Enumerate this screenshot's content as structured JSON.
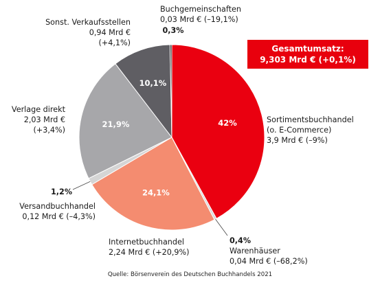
{
  "chart_data": {
    "type": "pie",
    "title": "",
    "total_box": {
      "label": "Gesamtumsatz:",
      "value": "9,303 Mrd € (+0,1%)"
    },
    "slices": [
      {
        "pct_label": "42%",
        "value": 42.0,
        "name_lines": [
          "Sortimentsbuchhandel",
          "(o. E-Commerce)"
        ],
        "detail": "3,9 Mrd € (–9%)",
        "color": "#ea0010"
      },
      {
        "pct_label": "0,4%",
        "value": 0.4,
        "name_lines": [
          "Warenhäuser"
        ],
        "detail": "0,04 Mrd € (–68,2%)",
        "color": "#d9d9d9"
      },
      {
        "pct_label": "24,1%",
        "value": 24.1,
        "name_lines": [
          "Internetbuchhandel"
        ],
        "detail": "2,24 Mrd € (+20,9%)",
        "color": "#f48c70"
      },
      {
        "pct_label": "1,2%",
        "value": 1.2,
        "name_lines": [
          "Versandbuchhandel"
        ],
        "detail": "0,12 Mrd € (–4,3%)",
        "color": "#d5d5d5"
      },
      {
        "pct_label": "21,9%",
        "value": 21.9,
        "name_lines": [
          "Verlage direkt"
        ],
        "detail_lines": [
          "2,03 Mrd €",
          "(+3,4%)"
        ],
        "color": "#a7a7aa"
      },
      {
        "pct_label": "10,1%",
        "value": 10.1,
        "name_lines": [
          "Sonst. Verkaufsstellen"
        ],
        "detail_lines": [
          "0,94 Mrd €",
          "(+4,1%)"
        ],
        "color": "#5f5e63"
      },
      {
        "pct_label": "0,3%",
        "value": 0.3,
        "name_lines": [
          "Buchgemeinschaften"
        ],
        "detail": "0,03 Mrd € (–19,1%)",
        "color": "#2a2a2a"
      }
    ],
    "source": "Quelle: Börsenverein des Deutschen Buchhandels 2021"
  }
}
